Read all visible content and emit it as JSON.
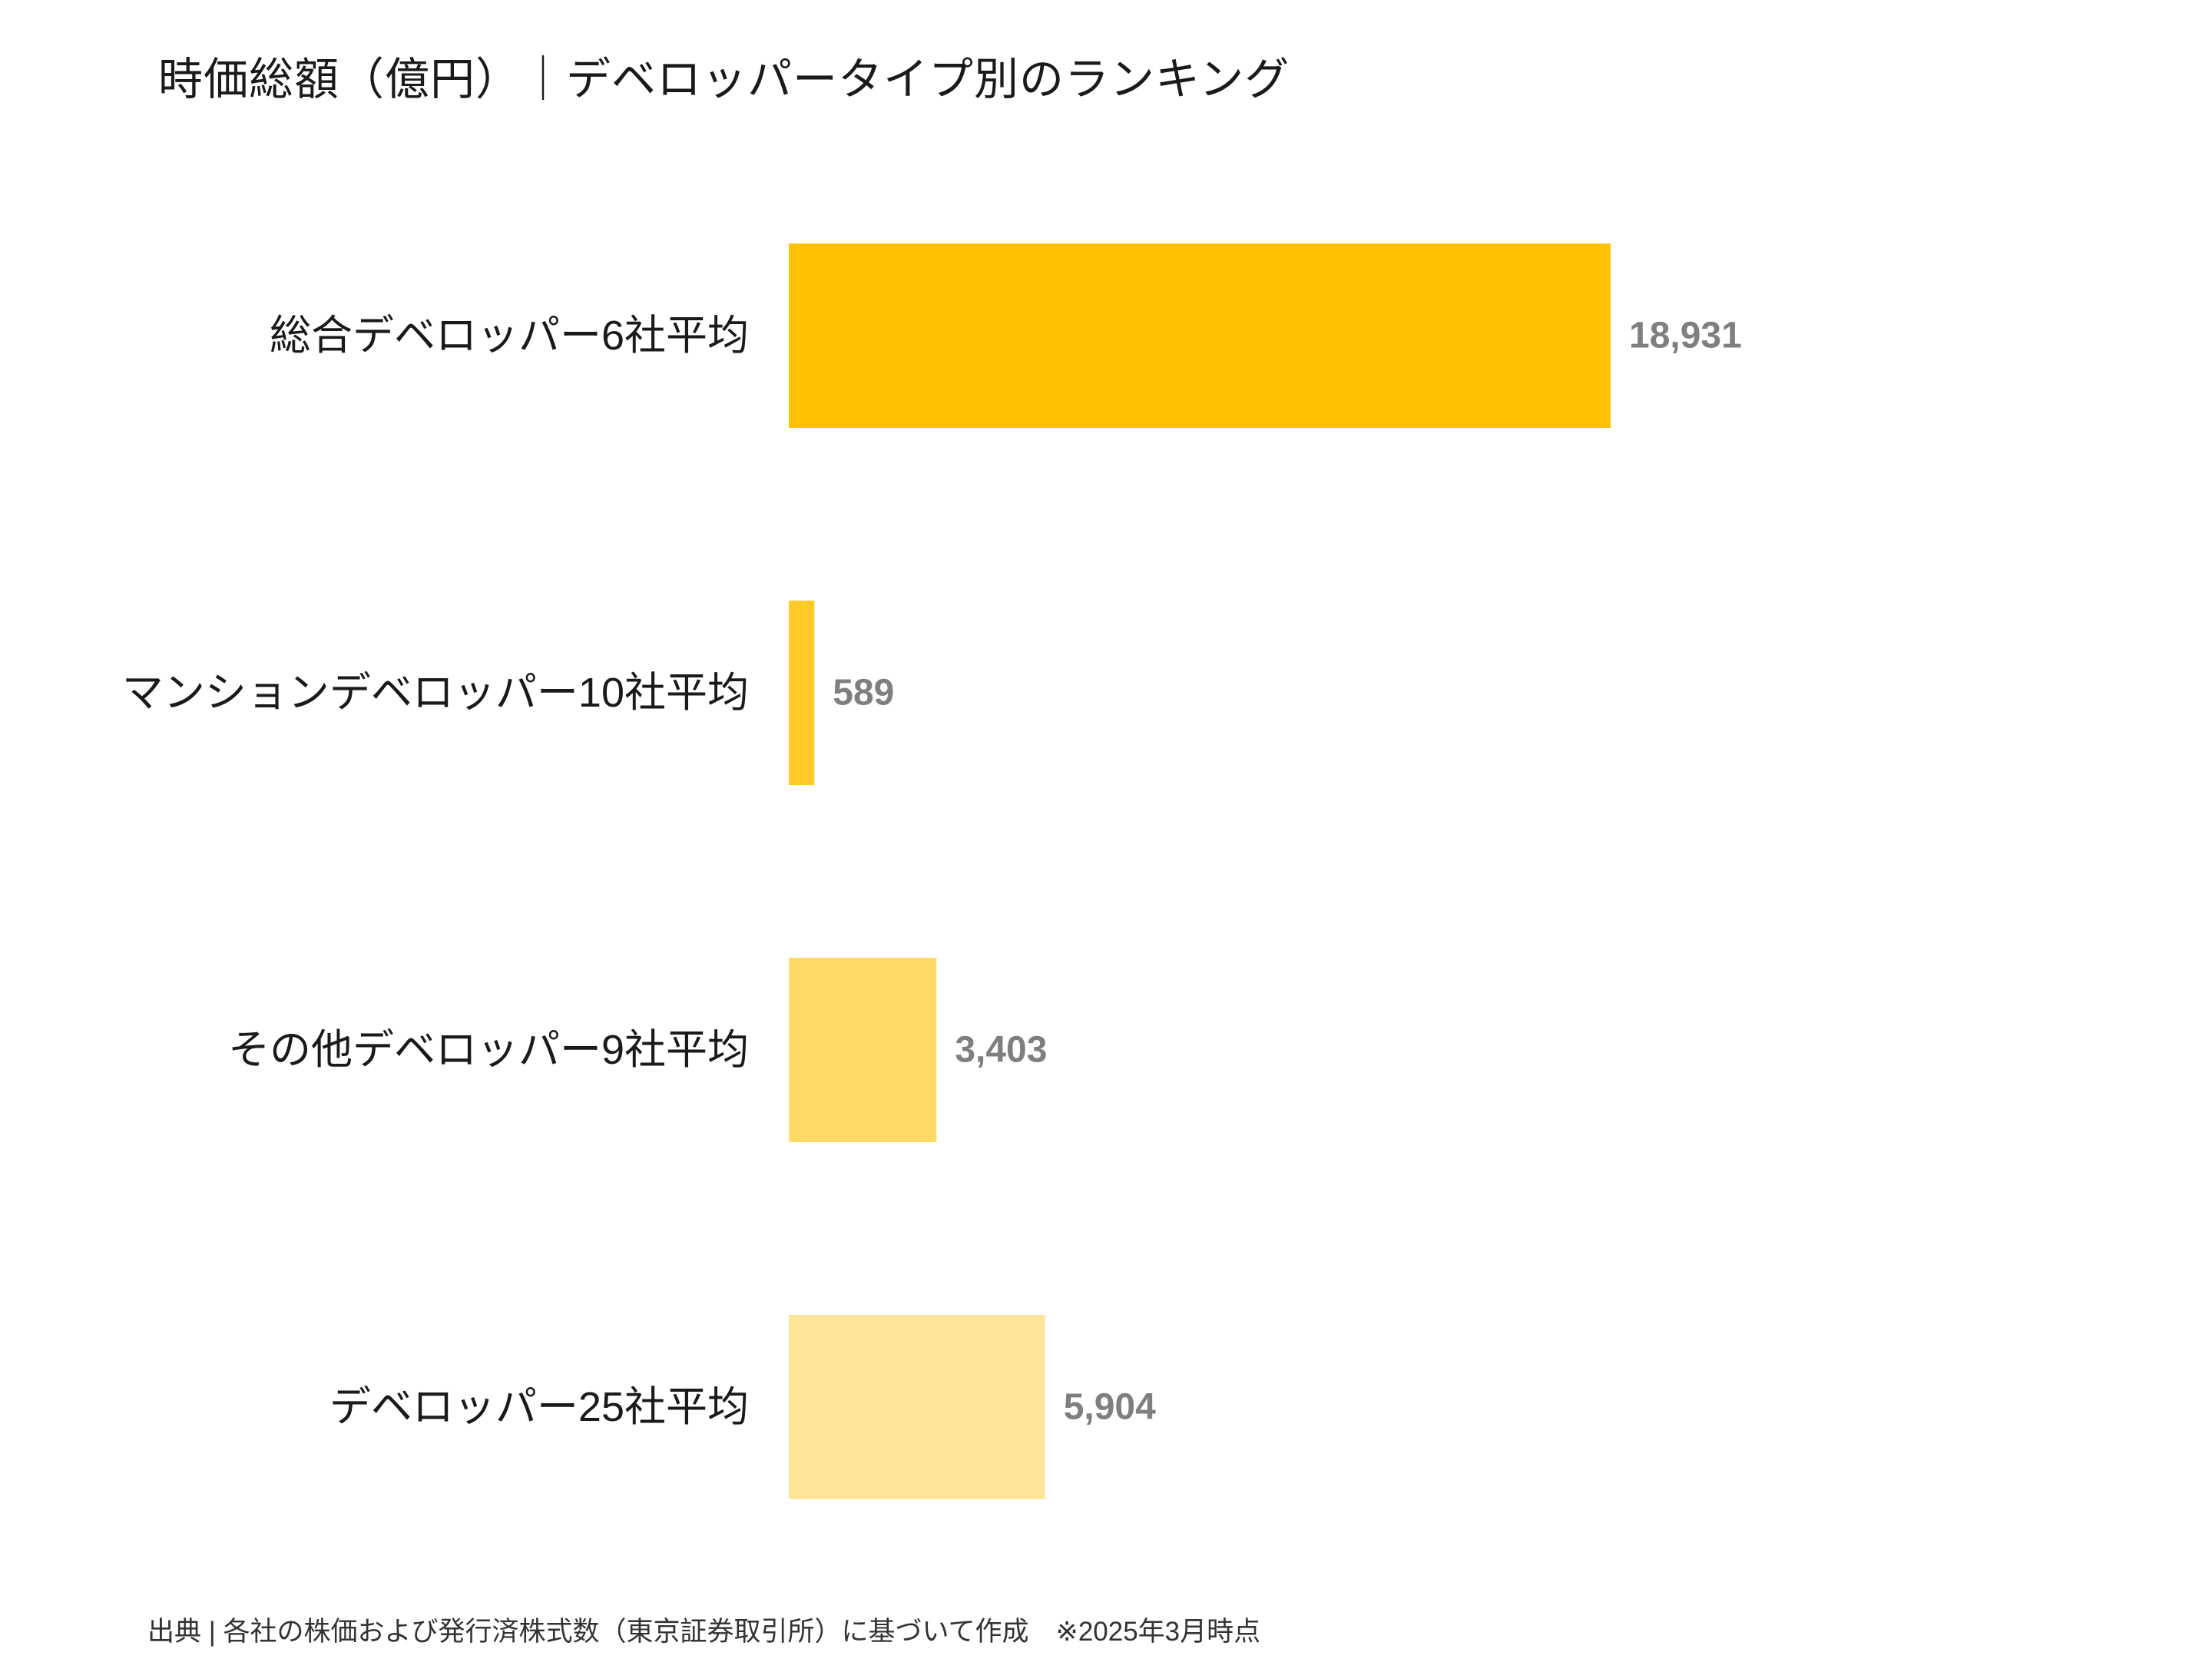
{
  "chart_data": {
    "type": "bar",
    "orientation": "horizontal",
    "title": "時価総額（億円）｜デベロッパータイプ別のランキング",
    "categories": [
      "総合デベロッパー6社平均",
      "マンションデベロッパー10社平均",
      "その他デベロッパー9社平均",
      "デベロッパー25社平均"
    ],
    "values": [
      18931,
      589,
      3403,
      5904
    ],
    "value_labels": [
      "18,931",
      "589",
      "3,403",
      "5,904"
    ],
    "colors": [
      "#FFC000",
      "#FFCA28",
      "#FFD966",
      "#FFE599"
    ],
    "xlabel": "",
    "ylabel": "",
    "xlim": [
      0,
      25000
    ],
    "grid": false,
    "legend": "none"
  },
  "footnote": "出典 | 各社の株価および発行済株式数（東京証券取引所）に基づいて作成　※2025年3月時点"
}
